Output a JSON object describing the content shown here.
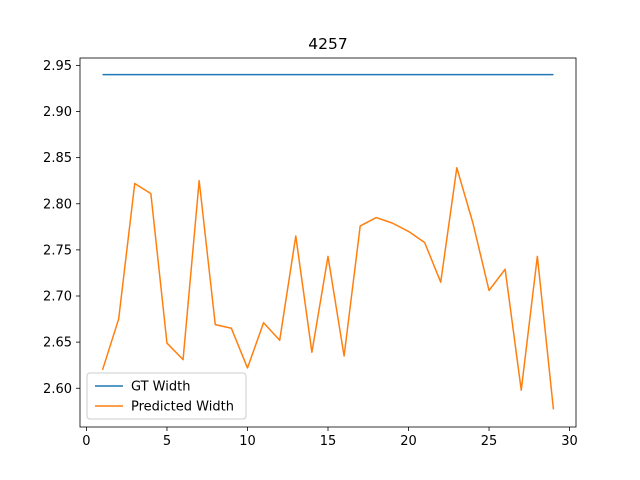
{
  "chart_data": {
    "type": "line",
    "title": "4257",
    "xlabel": "",
    "ylabel": "",
    "xlim": [
      -0.4,
      30.4
    ],
    "ylim": [
      2.558,
      2.958
    ],
    "xticks": [
      0,
      5,
      10,
      15,
      20,
      25,
      30
    ],
    "xtick_labels": [
      "0",
      "5",
      "10",
      "15",
      "20",
      "25",
      "30"
    ],
    "yticks": [
      2.6,
      2.65,
      2.7,
      2.75,
      2.8,
      2.85,
      2.9,
      2.95
    ],
    "ytick_labels": [
      "2.60",
      "2.65",
      "2.70",
      "2.75",
      "2.80",
      "2.85",
      "2.90",
      "2.95"
    ],
    "grid": false,
    "legend_position": "lower-left",
    "series": [
      {
        "name": "GT Width",
        "color": "#1f77b4",
        "x": [
          1,
          2,
          3,
          4,
          5,
          6,
          7,
          8,
          9,
          10,
          11,
          12,
          13,
          14,
          15,
          16,
          17,
          18,
          19,
          20,
          21,
          22,
          23,
          24,
          25,
          26,
          27,
          28,
          29
        ],
        "values": [
          2.94,
          2.94,
          2.94,
          2.94,
          2.94,
          2.94,
          2.94,
          2.94,
          2.94,
          2.94,
          2.94,
          2.94,
          2.94,
          2.94,
          2.94,
          2.94,
          2.94,
          2.94,
          2.94,
          2.94,
          2.94,
          2.94,
          2.94,
          2.94,
          2.94,
          2.94,
          2.94,
          2.94,
          2.94
        ]
      },
      {
        "name": "Predicted Width",
        "color": "#ff7f0e",
        "x": [
          1,
          2,
          3,
          4,
          5,
          6,
          7,
          8,
          9,
          10,
          11,
          12,
          13,
          14,
          15,
          16,
          17,
          18,
          19,
          20,
          21,
          22,
          23,
          24,
          25,
          26,
          27,
          28,
          29
        ],
        "values": [
          2.62,
          2.675,
          2.822,
          2.811,
          2.649,
          2.631,
          2.825,
          2.669,
          2.665,
          2.622,
          2.671,
          2.652,
          2.765,
          2.639,
          2.743,
          2.635,
          2.776,
          2.785,
          2.779,
          2.77,
          2.758,
          2.715,
          2.839,
          2.779,
          2.706,
          2.729,
          2.598,
          2.743,
          2.577
        ]
      }
    ]
  }
}
